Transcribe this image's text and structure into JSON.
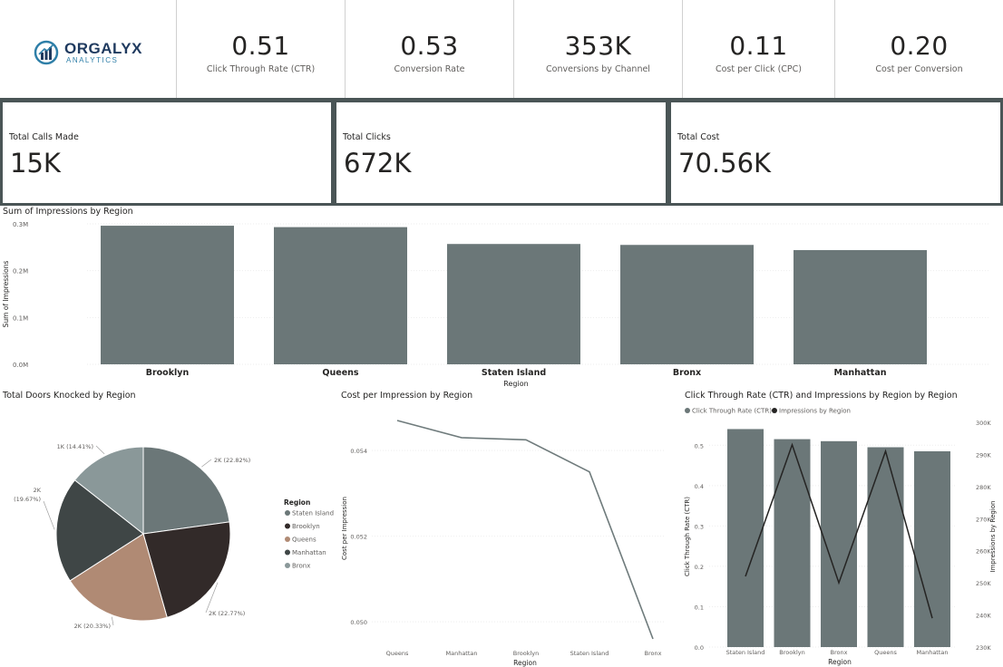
{
  "logo": {
    "name": "ORGALYX",
    "sub": "ANALYTICS"
  },
  "kpis": [
    {
      "value": "0.51",
      "label": "Click Through Rate (CTR)"
    },
    {
      "value": "0.53",
      "label": "Conversion Rate"
    },
    {
      "value": "353K",
      "label": "Conversions by Channel"
    },
    {
      "value": "0.11",
      "label": "Cost per Click (CPC)"
    },
    {
      "value": "0.20",
      "label": "Cost per Conversion"
    }
  ],
  "cards": [
    {
      "label": "Total Calls Made",
      "value": "15K"
    },
    {
      "label": "Total Clicks",
      "value": "672K"
    },
    {
      "label": "Total Cost",
      "value": "70.56K"
    }
  ],
  "colors": {
    "bar": "#6b7778",
    "line_gray": "#6f7b7c",
    "line_dark": "#252423",
    "pie": [
      "#6b7778",
      "#322a29",
      "#b08a74",
      "#3f4646",
      "#8a9899"
    ]
  },
  "chart_data": [
    {
      "type": "bar",
      "title": "Sum of Impressions by Region",
      "xlabel": "Region",
      "ylabel": "Sum of Impressions",
      "categories": [
        "Brooklyn",
        "Queens",
        "Staten Island",
        "Bronx",
        "Manhattan"
      ],
      "values": [
        296000,
        293000,
        257000,
        255000,
        244000
      ],
      "yticks": [
        "0.0M",
        "0.1M",
        "0.2M",
        "0.3M"
      ],
      "ylim": [
        0,
        300000
      ],
      "grid": true
    },
    {
      "type": "pie",
      "title": "Total Doors Knocked by Region",
      "legend_title": "Region",
      "legend_position": "right",
      "categories": [
        "Staten Island",
        "Brooklyn",
        "Queens",
        "Manhattan",
        "Bronx"
      ],
      "values": [
        22.82,
        22.77,
        20.33,
        19.67,
        14.41
      ],
      "labels": [
        "2K (22.82%)",
        "2K (22.77%)",
        "2K (20.33%)",
        "2K (19.67%)",
        "1K (14.41%)"
      ]
    },
    {
      "type": "line",
      "title": "Cost per Impression by Region",
      "xlabel": "Region",
      "ylabel": "Cost per Impression",
      "categories": [
        "Queens",
        "Manhattan",
        "Brooklyn",
        "Staten Island",
        "Bronx"
      ],
      "values": [
        0.0547,
        0.0543,
        0.05425,
        0.0535,
        0.0496
      ],
      "yticks": [
        "0.050",
        "0.052",
        "0.054"
      ],
      "ylim": [
        0.0496,
        0.0547
      ],
      "grid": true
    },
    {
      "type": "bar",
      "title": "Click Through Rate (CTR) and Impressions by Region by Region",
      "xlabel": "Region",
      "ylabel": "Click Through Rate (CTR)",
      "y2label": "Impressions by Region",
      "legend_position": "top-left",
      "categories": [
        "Staten Island",
        "Brooklyn",
        "Bronx",
        "Queens",
        "Manhattan"
      ],
      "series": [
        {
          "name": "Click Through Rate (CTR)",
          "type": "bar",
          "values": [
            0.54,
            0.515,
            0.51,
            0.495,
            0.485
          ]
        },
        {
          "name": "Impressions by Region",
          "type": "line",
          "values": [
            252000,
            293000,
            250000,
            291000,
            239000
          ]
        }
      ],
      "yticks": [
        "0.0",
        "0.1",
        "0.2",
        "0.3",
        "0.4",
        "0.5"
      ],
      "ylim": [
        0,
        0.55
      ],
      "y2ticks": [
        "230K",
        "240K",
        "250K",
        "260K",
        "270K",
        "280K",
        "290K",
        "300K"
      ],
      "y2lim": [
        230000,
        300000
      ],
      "grid": true
    }
  ]
}
